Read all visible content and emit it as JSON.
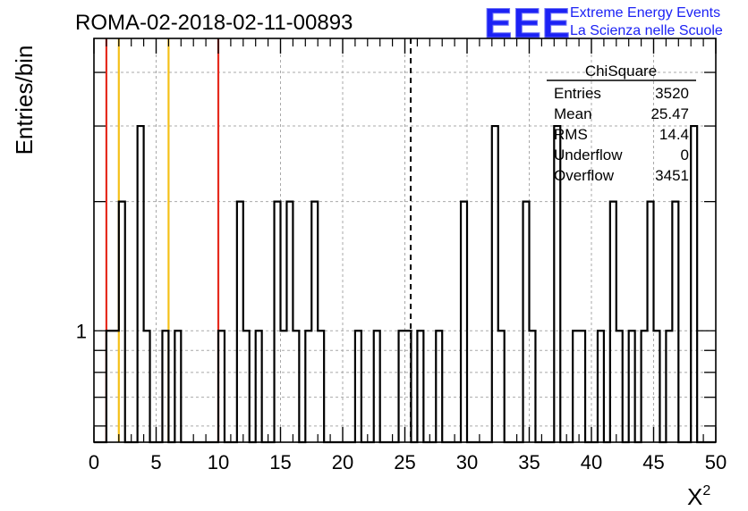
{
  "chart_data": {
    "type": "histogram",
    "title": "ROMA-02-2018-02-11-00893",
    "xlabel": "X",
    "xlabel_superscript": "2",
    "ylabel": "Entries/bin",
    "xlim": [
      0,
      50
    ],
    "ylim": [
      0.55,
      4.8
    ],
    "y_scale": "log",
    "grid": true,
    "bin_width": 0.5,
    "bins": [
      [
        1,
        1
      ],
      [
        1.5,
        1
      ],
      [
        2,
        2
      ],
      [
        3.5,
        3
      ],
      [
        4,
        1
      ],
      [
        5.5,
        1
      ],
      [
        6.5,
        1
      ],
      [
        10,
        1
      ],
      [
        11.5,
        2
      ],
      [
        12,
        1
      ],
      [
        13,
        1
      ],
      [
        14.5,
        2
      ],
      [
        15,
        1
      ],
      [
        15.5,
        2
      ],
      [
        16,
        1
      ],
      [
        17,
        1
      ],
      [
        17.5,
        2
      ],
      [
        18,
        1
      ],
      [
        21,
        1
      ],
      [
        22.5,
        1
      ],
      [
        24.5,
        1
      ],
      [
        25,
        1
      ],
      [
        26,
        1
      ],
      [
        27.5,
        1
      ],
      [
        29.5,
        2
      ],
      [
        32,
        3
      ],
      [
        32.5,
        1
      ],
      [
        34.5,
        2
      ],
      [
        35,
        1
      ],
      [
        37,
        3
      ],
      [
        38.5,
        1
      ],
      [
        39,
        1
      ],
      [
        40.5,
        1
      ],
      [
        41.5,
        2
      ],
      [
        42,
        1
      ],
      [
        43,
        1
      ],
      [
        44,
        1
      ],
      [
        44.5,
        2
      ],
      [
        45,
        1
      ],
      [
        46,
        1
      ],
      [
        46.5,
        2
      ],
      [
        48,
        3
      ]
    ],
    "x_ticks": [
      "0",
      "5",
      "10",
      "15",
      "20",
      "25",
      "30",
      "35",
      "40",
      "45",
      "50"
    ],
    "y_tick_labels": [
      {
        "value": 1,
        "label": "1"
      }
    ],
    "vertical_lines": [
      {
        "x": 1,
        "color": "#e52b1e",
        "style": "solid"
      },
      {
        "x": 2,
        "color": "#f5c018",
        "style": "solid"
      },
      {
        "x": 6,
        "color": "#f5c018",
        "style": "solid"
      },
      {
        "x": 10,
        "color": "#e52b1e",
        "style": "solid"
      },
      {
        "x": 25.47,
        "color": "#000000",
        "style": "dashed"
      }
    ],
    "stats_box": {
      "title": "ChiSquare",
      "rows": [
        {
          "label": "Entries",
          "value": "3520"
        },
        {
          "label": "Mean",
          "value": "25.47"
        },
        {
          "label": "RMS",
          "value": "14.4"
        },
        {
          "label": "Underflow",
          "value": "0"
        },
        {
          "label": "Overflow",
          "value": "3451"
        }
      ]
    }
  },
  "logo": {
    "mark": "EEE",
    "line1": "Extreme Energy Events",
    "line2": "La Scienza nelle Scuole",
    "color": "#1c22f5"
  }
}
